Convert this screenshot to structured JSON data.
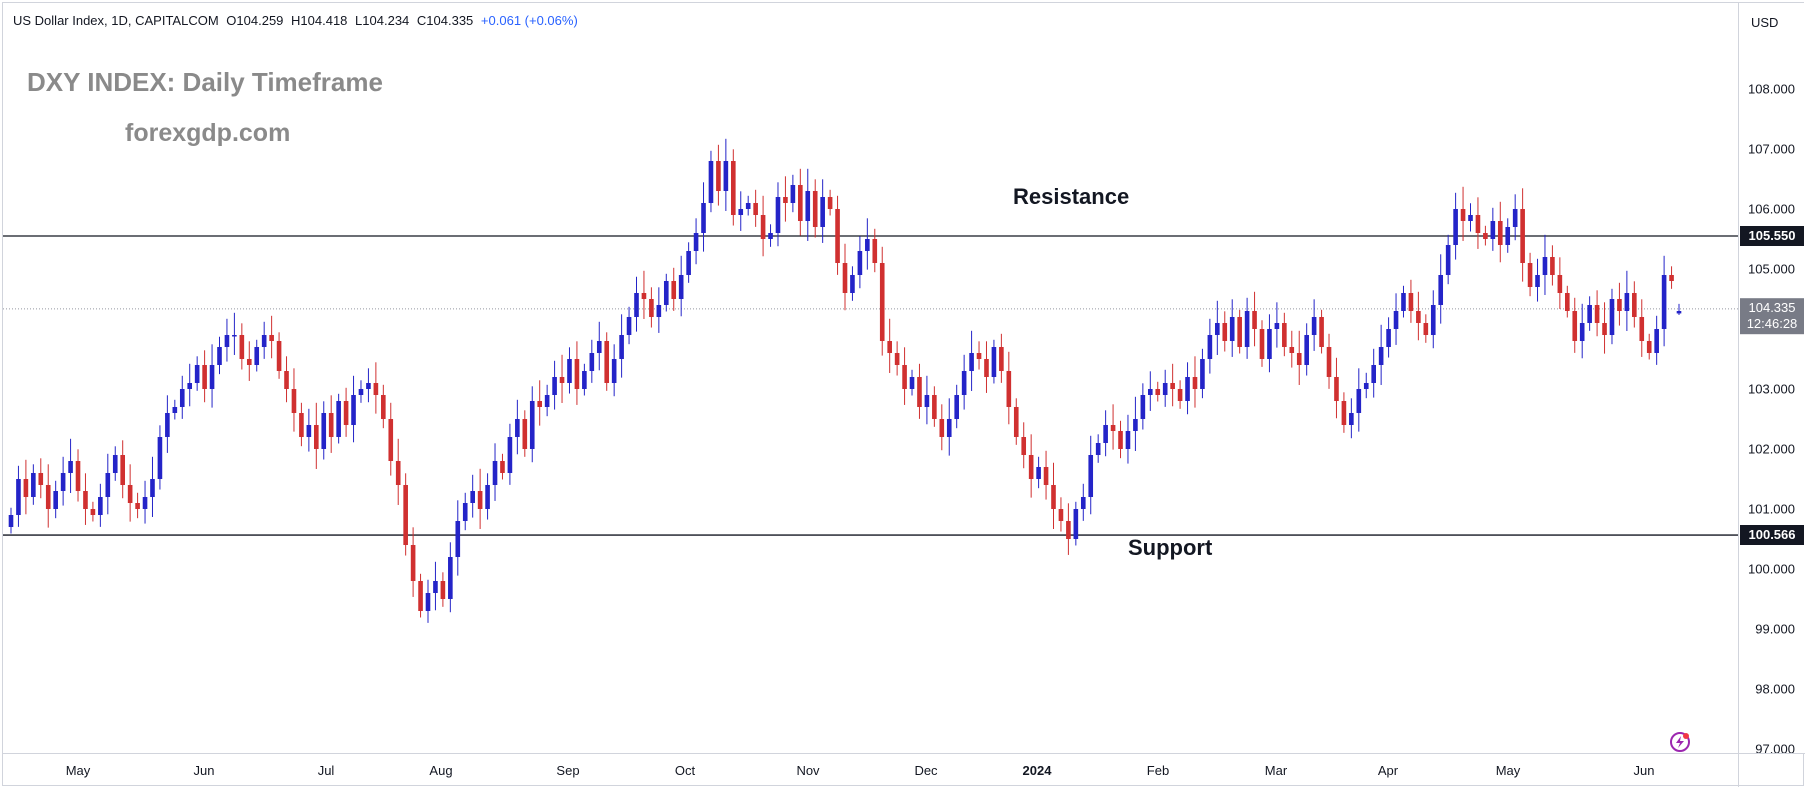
{
  "legend": {
    "symbol": "US Dollar Index, 1D, CAPITALCOM",
    "open_label": "O",
    "open": "104.259",
    "high_label": "H",
    "high": "104.418",
    "low_label": "L",
    "low": "104.234",
    "close_label": "C",
    "close": "104.335",
    "change": "+0.061 (+0.06%)"
  },
  "watermark": {
    "title": "DXY INDEX: Daily Timeframe",
    "site": "forexgdp.com"
  },
  "annotations": {
    "resistance": "Resistance",
    "support": "Support"
  },
  "price_scale": {
    "currency": "USD",
    "ticks": [
      "108.000",
      "107.000",
      "106.000",
      "105.000",
      "104.000",
      "103.000",
      "102.000",
      "101.000",
      "100.000",
      "99.000",
      "98.000",
      "97.000"
    ],
    "resistance_badge": "105.550",
    "support_badge": "100.566",
    "last_price": "104.335",
    "countdown": "12:46:28"
  },
  "colors": {
    "up": "#2424c8",
    "down": "#d03030",
    "level_line": "#131722",
    "last_price_line": "#9598a1"
  },
  "time_scale": {
    "labels": [
      "May",
      "Jun",
      "Jul",
      "Aug",
      "Sep",
      "Oct",
      "Nov",
      "Dec",
      "2024",
      "Feb",
      "Mar",
      "Apr",
      "May",
      "Jun"
    ]
  },
  "chart_data": {
    "type": "candlestick",
    "title": "DXY INDEX: Daily Timeframe",
    "ylim": [
      97.0,
      108.0
    ],
    "x_axis": [
      "May",
      "Jun",
      "Jul",
      "Aug",
      "Sep",
      "Oct",
      "Nov",
      "Dec",
      "2024",
      "Feb",
      "Mar",
      "Apr",
      "May",
      "Jun"
    ],
    "levels": [
      {
        "name": "Resistance",
        "value": 105.55
      },
      {
        "name": "Support",
        "value": 100.566
      }
    ],
    "last": {
      "open": 104.259,
      "high": 104.418,
      "low": 104.234,
      "close": 104.335
    },
    "closes": [
      100.9,
      101.5,
      101.2,
      101.6,
      101.4,
      101.0,
      101.3,
      101.6,
      101.8,
      101.3,
      101.0,
      100.9,
      101.2,
      101.6,
      101.9,
      101.4,
      101.1,
      101.0,
      101.2,
      101.5,
      102.2,
      102.6,
      102.7,
      103.0,
      103.1,
      103.4,
      103.0,
      103.4,
      103.7,
      103.9,
      103.9,
      103.5,
      103.4,
      103.7,
      103.9,
      103.8,
      103.3,
      103.0,
      102.6,
      102.2,
      102.4,
      102.0,
      102.6,
      102.2,
      102.8,
      102.4,
      102.9,
      103.0,
      103.1,
      102.9,
      102.5,
      101.8,
      101.4,
      100.4,
      99.8,
      99.3,
      99.6,
      99.8,
      99.5,
      100.2,
      100.8,
      101.1,
      101.3,
      101.0,
      101.4,
      101.8,
      101.6,
      102.2,
      102.5,
      102.0,
      102.8,
      102.7,
      102.9,
      103.2,
      103.1,
      103.5,
      103.0,
      103.3,
      103.6,
      103.8,
      103.1,
      103.5,
      103.9,
      104.2,
      104.6,
      104.5,
      104.2,
      104.4,
      104.8,
      104.5,
      104.9,
      105.3,
      105.6,
      106.1,
      106.8,
      106.3,
      106.8,
      105.9,
      106.0,
      106.1,
      105.9,
      105.5,
      105.6,
      106.2,
      106.1,
      106.4,
      105.8,
      106.3,
      105.7,
      106.2,
      106.0,
      105.1,
      104.6,
      104.9,
      105.3,
      105.5,
      105.1,
      103.8,
      103.6,
      103.4,
      103.0,
      103.2,
      102.7,
      102.9,
      102.5,
      102.2,
      102.5,
      102.9,
      103.3,
      103.6,
      103.5,
      103.2,
      103.7,
      103.3,
      102.7,
      102.2,
      101.9,
      101.5,
      101.7,
      101.4,
      101.0,
      100.8,
      100.5,
      101.0,
      101.2,
      101.9,
      102.1,
      102.4,
      102.3,
      102.0,
      102.3,
      102.5,
      102.9,
      103.0,
      102.9,
      103.1,
      103.0,
      102.8,
      103.2,
      103.0,
      103.5,
      103.9,
      104.1,
      103.8,
      104.2,
      103.7,
      104.3,
      104.0,
      103.5,
      104.0,
      104.1,
      103.7,
      103.6,
      103.4,
      103.9,
      104.2,
      103.7,
      103.2,
      102.8,
      102.4,
      102.6,
      103.0,
      103.1,
      103.4,
      103.7,
      104.0,
      104.3,
      104.6,
      104.3,
      104.1,
      103.9,
      104.4,
      104.9,
      105.4,
      106.0,
      105.8,
      105.9,
      105.6,
      105.5,
      105.8,
      105.4,
      105.7,
      106.0,
      105.1,
      104.7,
      104.9,
      105.2,
      104.9,
      104.6,
      104.3,
      103.8,
      104.1,
      104.4,
      104.1,
      103.9,
      104.5,
      104.3,
      104.6,
      104.2,
      103.8,
      103.6,
      104.0,
      104.9,
      104.8,
      104.3
    ]
  }
}
